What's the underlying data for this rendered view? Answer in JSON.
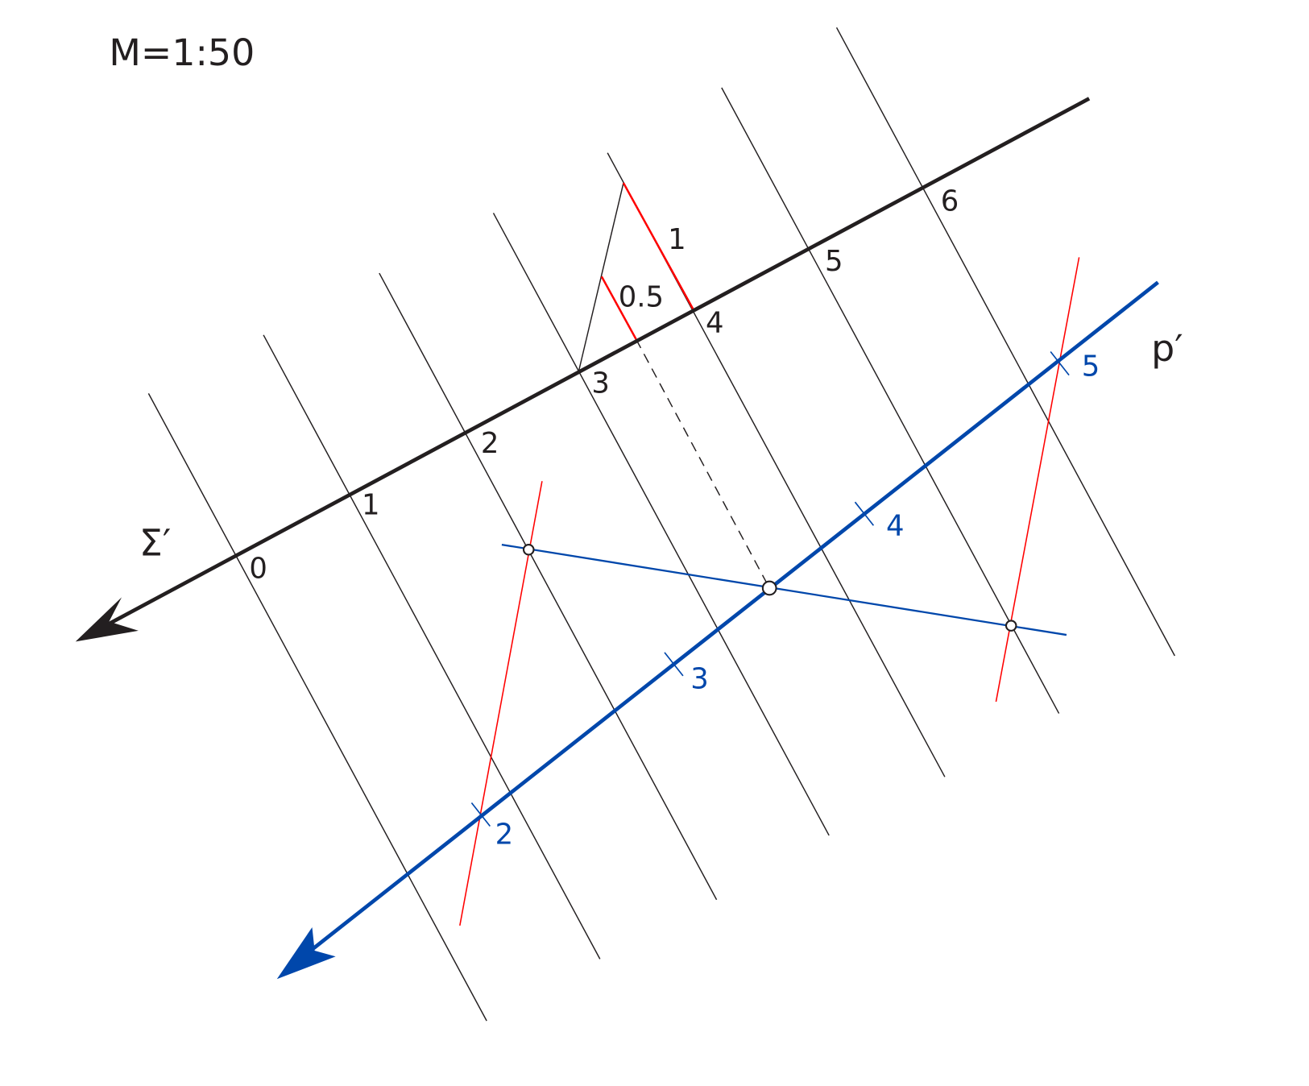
{
  "scale_label": "M=1:50",
  "sigma_label": "Σ′",
  "p_label": "p′",
  "sigma_scale_ticks": [
    "0",
    "1",
    "2",
    "3",
    "4",
    "5",
    "6"
  ],
  "construction_labels": {
    "unit": "1",
    "half": "0.5"
  },
  "p_scale_ticks": [
    "2",
    "3",
    "4",
    "5"
  ],
  "colors": {
    "black": "#231f20",
    "blue": "#0047ab",
    "red": "#ff0000"
  }
}
